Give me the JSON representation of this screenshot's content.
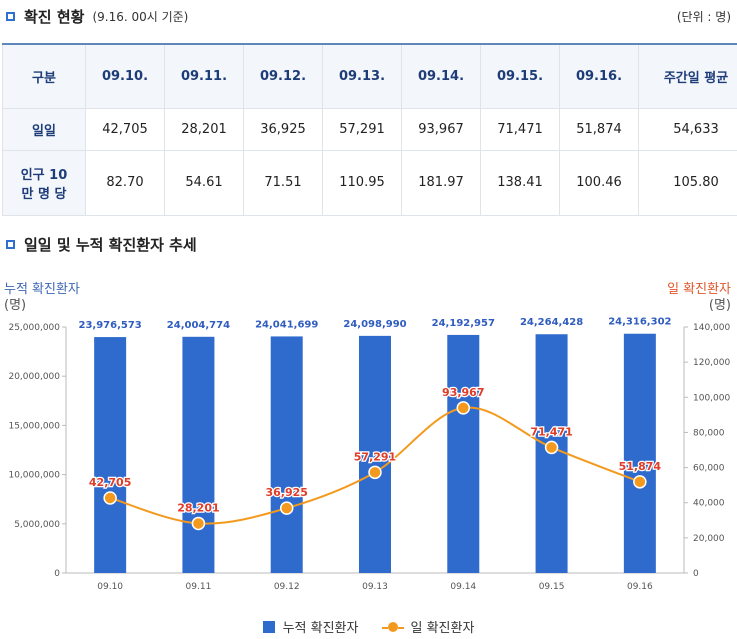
{
  "section1": {
    "title": "확진 현황",
    "subtitle": "(9.16. 00시 기준)",
    "unit": "(단위 : 명)"
  },
  "table": {
    "headers": [
      "구분",
      "09.10.",
      "09.11.",
      "09.12.",
      "09.13.",
      "09.14.",
      "09.15.",
      "09.16.",
      "주간일 평균"
    ],
    "rows": [
      {
        "label": "일일",
        "values": [
          "42,705",
          "28,201",
          "36,925",
          "57,291",
          "93,967",
          "71,471",
          "51,874",
          "54,633"
        ]
      },
      {
        "label": "인구 10만 명 당",
        "values": [
          "82.70",
          "54.61",
          "71.51",
          "110.95",
          "181.97",
          "138.41",
          "100.46",
          "105.80"
        ]
      }
    ]
  },
  "section2": {
    "title": "일일 및 누적 확진환자 추세"
  },
  "chart_labels": {
    "left_title": "누적 확진환자",
    "left_unit": "(명)",
    "right_title": "일 확진환자",
    "right_unit": "(명)"
  },
  "colors": {
    "bar": "#2f6bcc",
    "line": "#f39a1e",
    "bar_label": "#2f5cbf",
    "line_label": "#e03c28",
    "left_title": "#3e66b5",
    "right_title": "#e0562c"
  },
  "chart_data": {
    "type": "bar+line",
    "categories": [
      "09.10",
      "09.11",
      "09.12",
      "09.13",
      "09.14",
      "09.15",
      "09.16"
    ],
    "series": [
      {
        "name": "누적 확진환자",
        "type": "bar",
        "axis": "left",
        "values": [
          23976573,
          24004774,
          24041699,
          24098990,
          24192957,
          24264428,
          24316302
        ],
        "labels": [
          "23,976,573",
          "24,004,774",
          "24,041,699",
          "24,098,990",
          "24,192,957",
          "24,264,428",
          "24,316,302"
        ]
      },
      {
        "name": "일 확진환자",
        "type": "line",
        "axis": "right",
        "values": [
          42705,
          28201,
          36925,
          57291,
          93967,
          71471,
          51874
        ],
        "labels": [
          "42,705",
          "28,201",
          "36,925",
          "57,291",
          "93,967",
          "71,471",
          "51,874"
        ]
      }
    ],
    "y_left": {
      "min": 0,
      "max": 25000000,
      "ticks": [
        "0",
        "5,000,000",
        "10,000,000",
        "15,000,000",
        "20,000,000",
        "25,000,000"
      ]
    },
    "y_right": {
      "min": 0,
      "max": 140000,
      "ticks": [
        "0",
        "20,000",
        "40,000",
        "60,000",
        "80,000",
        "100,000",
        "120,000",
        "140,000"
      ]
    },
    "legend": [
      "누적 확진환자",
      "일 확진환자"
    ]
  }
}
